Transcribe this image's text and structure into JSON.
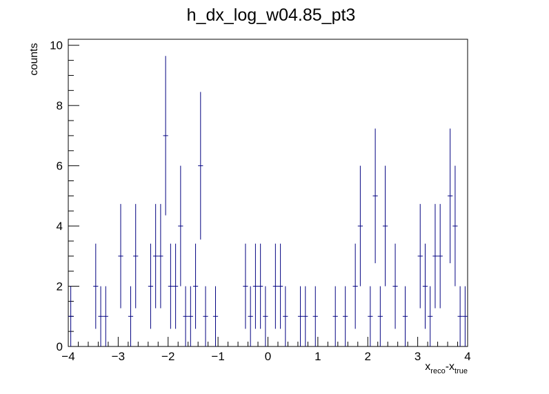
{
  "chart_data": {
    "type": "bar",
    "title": "h_dx_log_w04.85_pt3",
    "xlabel": {
      "parts": [
        "x",
        "reco",
        "-x",
        "true"
      ]
    },
    "ylabel": "counts",
    "xlim": [
      -4,
      4
    ],
    "ylim": [
      0,
      10.2
    ],
    "bin_width": 0.1,
    "error_bars": "sqrt(N)",
    "grid": false,
    "legend": "none",
    "x_tick_labels": [
      "−4",
      "−3",
      "−2",
      "−1",
      "0",
      "1",
      "2",
      "3",
      "4"
    ],
    "y_tick_labels": [
      "0",
      "2",
      "4",
      "6",
      "8",
      "10"
    ],
    "colors": {
      "errors": "#000080",
      "markers": "#000080",
      "frame": "#000000"
    },
    "bins": [
      {
        "x": -3.95,
        "y": 1
      },
      {
        "x": -3.45,
        "y": 2
      },
      {
        "x": -3.35,
        "y": 1
      },
      {
        "x": -3.25,
        "y": 1
      },
      {
        "x": -2.95,
        "y": 3
      },
      {
        "x": -2.75,
        "y": 1
      },
      {
        "x": -2.65,
        "y": 3
      },
      {
        "x": -2.35,
        "y": 2
      },
      {
        "x": -2.25,
        "y": 3
      },
      {
        "x": -2.15,
        "y": 3
      },
      {
        "x": -2.05,
        "y": 7
      },
      {
        "x": -1.95,
        "y": 2
      },
      {
        "x": -1.85,
        "y": 2
      },
      {
        "x": -1.75,
        "y": 4
      },
      {
        "x": -1.65,
        "y": 1
      },
      {
        "x": -1.55,
        "y": 1
      },
      {
        "x": -1.45,
        "y": 2
      },
      {
        "x": -1.35,
        "y": 6
      },
      {
        "x": -1.25,
        "y": 1
      },
      {
        "x": -1.05,
        "y": 1
      },
      {
        "x": -0.45,
        "y": 2
      },
      {
        "x": -0.35,
        "y": 1
      },
      {
        "x": -0.25,
        "y": 2
      },
      {
        "x": -0.15,
        "y": 2
      },
      {
        "x": -0.05,
        "y": 1
      },
      {
        "x": 0.15,
        "y": 2
      },
      {
        "x": 0.25,
        "y": 2
      },
      {
        "x": 0.35,
        "y": 1
      },
      {
        "x": 0.65,
        "y": 1
      },
      {
        "x": 0.75,
        "y": 1
      },
      {
        "x": 0.95,
        "y": 1
      },
      {
        "x": 1.35,
        "y": 1
      },
      {
        "x": 1.55,
        "y": 1
      },
      {
        "x": 1.75,
        "y": 2
      },
      {
        "x": 1.85,
        "y": 4
      },
      {
        "x": 2.05,
        "y": 1
      },
      {
        "x": 2.15,
        "y": 5
      },
      {
        "x": 2.25,
        "y": 1
      },
      {
        "x": 2.35,
        "y": 4
      },
      {
        "x": 2.55,
        "y": 2
      },
      {
        "x": 2.75,
        "y": 1
      },
      {
        "x": 3.05,
        "y": 3
      },
      {
        "x": 3.15,
        "y": 2
      },
      {
        "x": 3.25,
        "y": 1
      },
      {
        "x": 3.35,
        "y": 3
      },
      {
        "x": 3.45,
        "y": 3
      },
      {
        "x": 3.65,
        "y": 5
      },
      {
        "x": 3.75,
        "y": 4
      },
      {
        "x": 3.85,
        "y": 1
      },
      {
        "x": 3.95,
        "y": 1
      }
    ]
  }
}
